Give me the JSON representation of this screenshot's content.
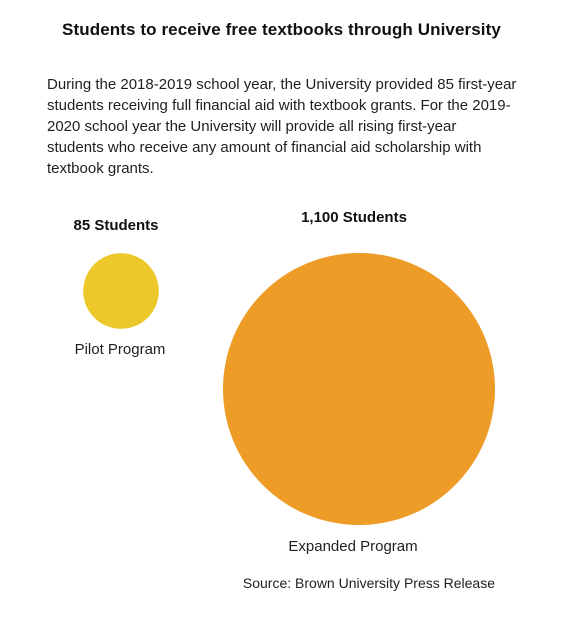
{
  "title": "Students to receive free textbooks through University",
  "description": "During the 2018-2019 school year, the University provided 85 first-year students receiving full financial aid with textbook grants. For the 2019-2020 school year the University will provide all rising first-year students who receive any amount of financial aid scholarship with textbook grants.",
  "source": "Source: Brown University Press Release",
  "colors": {
    "pilot": "#ecc82a",
    "expanded": "#ed9c27"
  },
  "chart_data": {
    "type": "bubble",
    "unit": "Students",
    "series": [
      {
        "category": "Pilot Program",
        "value": 85,
        "value_label": "85 Students"
      },
      {
        "category": "Expanded Program",
        "value": 1100,
        "value_label": "1,100 Students"
      }
    ]
  }
}
